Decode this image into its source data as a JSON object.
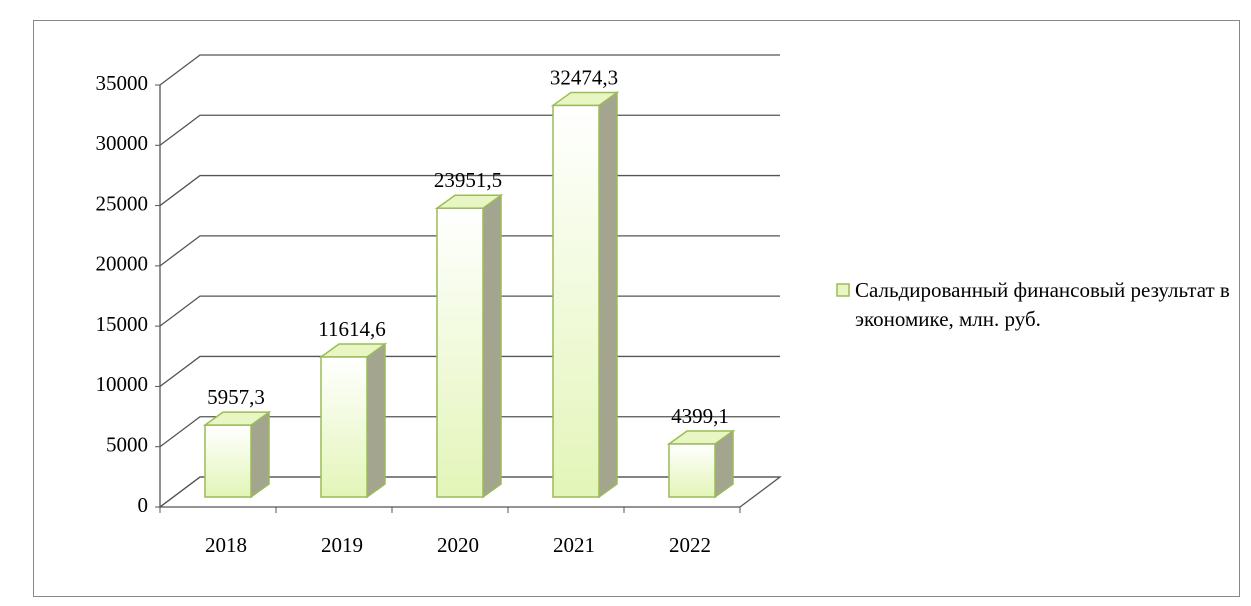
{
  "chart_data": {
    "type": "bar3d",
    "categories": [
      "2018",
      "2019",
      "2020",
      "2021",
      "2022"
    ],
    "series": [
      {
        "name": "Сальдированный финансовый результат в экономике, млн. руб.",
        "color": "#9bbb59",
        "values": [
          5957.3,
          11614.6,
          23951.5,
          32474.3,
          4399.1
        ],
        "value_labels": [
          "5957,3",
          "11614,6",
          "23951,5",
          "32474,3",
          "4399,1"
        ]
      }
    ],
    "ylim": [
      0,
      35000
    ],
    "yticks": [
      0,
      5000,
      10000,
      15000,
      20000,
      25000,
      30000,
      35000
    ],
    "grid": true,
    "legend": "right"
  }
}
